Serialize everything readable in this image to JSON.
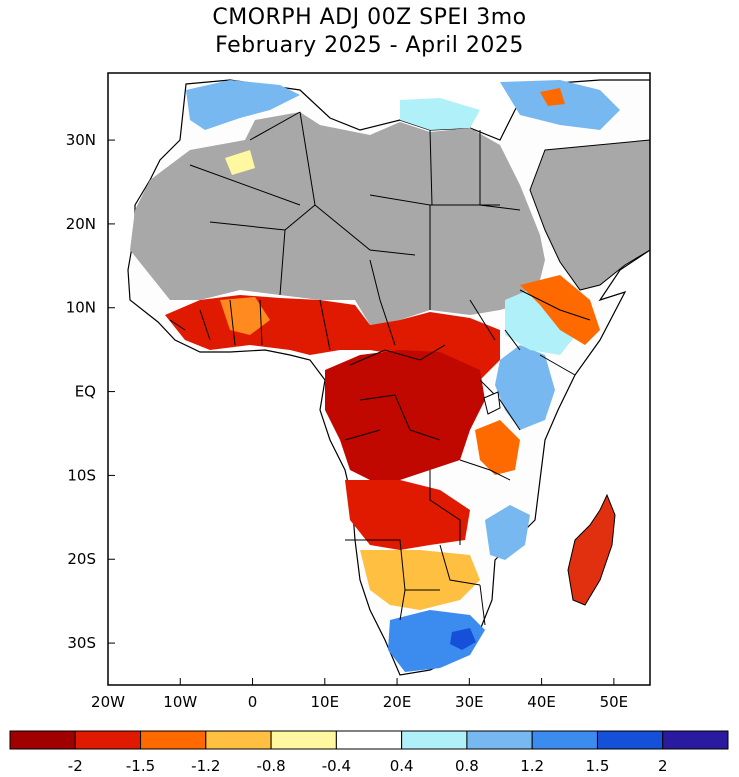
{
  "title_line1": "CMORPH ADJ 00Z SPEI 3mo",
  "title_line2": "February 2025 - April 2025",
  "axes": {
    "lon_labels": [
      "20W",
      "10W",
      "0",
      "10E",
      "20E",
      "30E",
      "40E",
      "50E"
    ],
    "lat_labels": [
      "30N",
      "20N",
      "10N",
      "EQ",
      "10S",
      "20S",
      "30S"
    ],
    "lon_range": [
      -20,
      55
    ],
    "lat_range": [
      -35,
      38
    ]
  },
  "legend": {
    "tick_labels": [
      "-2",
      "-1.5",
      "-1.2",
      "-0.8",
      "-0.4",
      "0.4",
      "0.8",
      "1.2",
      "1.5",
      "2"
    ],
    "colors": [
      "#a00000",
      "#e01a00",
      "#ff6a00",
      "#ffbf40",
      "#fff8a0",
      "#ffffff",
      "#b0f0f8",
      "#78b8f0",
      "#3c8cf0",
      "#1450d8",
      "#2a1aa0"
    ]
  },
  "map_colors": {
    "no_data": "#a8a8a8",
    "border": "#000000"
  }
}
